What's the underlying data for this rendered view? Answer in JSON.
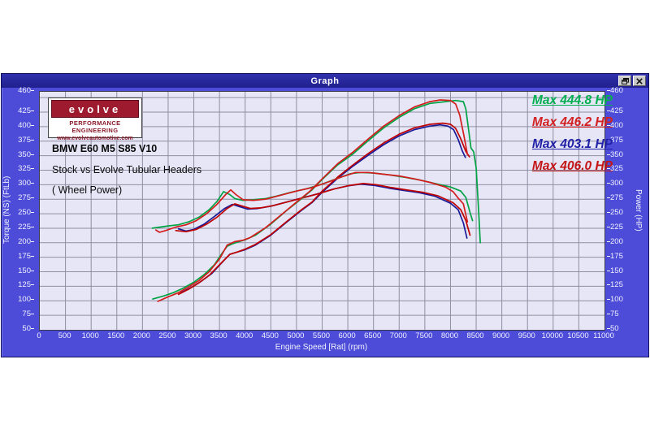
{
  "window": {
    "title": "Graph",
    "buttons": {
      "restore": "restore-window",
      "close": "close-window"
    }
  },
  "logo": {
    "brand": "evolve",
    "line1": "PERFORMANCE ENGINEERING",
    "line2": "www.evolveautomotive.com",
    "band_color": "#9e1a2e",
    "text_color": "#8b1a2b"
  },
  "annotations": {
    "line1": "BMW E60 M5 S85 V10",
    "line2": "Stock vs Evolve Tubular Headers",
    "line3": "( Wheel Power)"
  },
  "legend": [
    {
      "label": "Max 444.8 HP",
      "color": "#00b050"
    },
    {
      "label": "Max 446.2 HP",
      "color": "#d42020"
    },
    {
      "label": "Max 403.1 HP",
      "color": "#2121a8"
    },
    {
      "label": "Max 406.0 HP",
      "color": "#c41414"
    }
  ],
  "chart_data": {
    "type": "line",
    "title": "Graph",
    "xlabel": "Engine Speed [Rat] (rpm)",
    "ylabel_left": "Torque (NS) (FtLb)",
    "ylabel_right": "Power (HP)",
    "xlim": [
      0,
      11000
    ],
    "ylim": [
      50,
      460
    ],
    "grid": true,
    "x_ticks": [
      0,
      500,
      1000,
      1500,
      2000,
      2500,
      3000,
      3500,
      4000,
      4500,
      5000,
      5500,
      6000,
      6500,
      7000,
      7500,
      8000,
      8500,
      9000,
      9500,
      10000,
      10500,
      11000
    ],
    "y_ticks": [
      460,
      425,
      400,
      375,
      350,
      325,
      300,
      275,
      250,
      225,
      200,
      175,
      150,
      125,
      100,
      75,
      50
    ],
    "y_grid_step": 25,
    "plot_bg": "#E6E6F7",
    "grid_color": "#8f8fa2",
    "series": [
      {
        "name": "stock-run1-power",
        "unit": "HP",
        "max": 403.1,
        "color": "#1a1a99",
        "points": [
          [
            2750,
            114
          ],
          [
            2950,
            123
          ],
          [
            3150,
            134
          ],
          [
            3350,
            147
          ],
          [
            3550,
            166
          ],
          [
            3700,
            180
          ],
          [
            3850,
            184
          ],
          [
            4000,
            188
          ],
          [
            4200,
            196
          ],
          [
            4500,
            213
          ],
          [
            4800,
            235
          ],
          [
            5100,
            256
          ],
          [
            5300,
            269
          ],
          [
            5500,
            287
          ],
          [
            5800,
            311
          ],
          [
            6100,
            332
          ],
          [
            6400,
            351
          ],
          [
            6700,
            369
          ],
          [
            7000,
            384
          ],
          [
            7300,
            395
          ],
          [
            7600,
            401
          ],
          [
            7800,
            403
          ],
          [
            7950,
            401
          ],
          [
            8060,
            395
          ],
          [
            8150,
            378
          ],
          [
            8230,
            358
          ],
          [
            8290,
            347
          ]
        ]
      },
      {
        "name": "stock-run2-power",
        "unit": "HP",
        "max": 406.0,
        "color": "#c00000",
        "points": [
          [
            2700,
            111
          ],
          [
            2900,
            120
          ],
          [
            3100,
            131
          ],
          [
            3300,
            144
          ],
          [
            3500,
            162
          ],
          [
            3700,
            180
          ],
          [
            3850,
            184
          ],
          [
            4000,
            189
          ],
          [
            4200,
            197
          ],
          [
            4500,
            214
          ],
          [
            4800,
            236
          ],
          [
            5100,
            257
          ],
          [
            5300,
            270
          ],
          [
            5500,
            289
          ],
          [
            5800,
            313
          ],
          [
            6100,
            334
          ],
          [
            6400,
            354
          ],
          [
            6700,
            372
          ],
          [
            7000,
            387
          ],
          [
            7300,
            398
          ],
          [
            7600,
            404
          ],
          [
            7850,
            406
          ],
          [
            8000,
            404
          ],
          [
            8100,
            397
          ],
          [
            8200,
            379
          ],
          [
            8300,
            357
          ],
          [
            8370,
            348
          ]
        ]
      },
      {
        "name": "stock-run1-torque",
        "unit": "FtLb",
        "color": "#1a1a99",
        "points": [
          [
            2700,
            224
          ],
          [
            2850,
            220
          ],
          [
            3000,
            223
          ],
          [
            3200,
            232
          ],
          [
            3400,
            245
          ],
          [
            3600,
            259
          ],
          [
            3750,
            266
          ],
          [
            3900,
            262
          ],
          [
            4050,
            258
          ],
          [
            4250,
            259
          ],
          [
            4500,
            263
          ],
          [
            4800,
            270
          ],
          [
            5100,
            277
          ],
          [
            5400,
            284
          ],
          [
            5700,
            292
          ],
          [
            6000,
            298
          ],
          [
            6250,
            301
          ],
          [
            6500,
            299
          ],
          [
            6800,
            294
          ],
          [
            7100,
            290
          ],
          [
            7400,
            286
          ],
          [
            7700,
            280
          ],
          [
            8000,
            268
          ],
          [
            8150,
            257
          ],
          [
            8250,
            234
          ],
          [
            8320,
            208
          ]
        ]
      },
      {
        "name": "stock-run2-torque",
        "unit": "FtLb",
        "color": "#c00000",
        "points": [
          [
            2650,
            221
          ],
          [
            2850,
            219
          ],
          [
            3050,
            223
          ],
          [
            3250,
            232
          ],
          [
            3450,
            244
          ],
          [
            3650,
            259
          ],
          [
            3800,
            267
          ],
          [
            3950,
            263
          ],
          [
            4100,
            259
          ],
          [
            4300,
            260
          ],
          [
            4550,
            264
          ],
          [
            4850,
            271
          ],
          [
            5150,
            278
          ],
          [
            5450,
            285
          ],
          [
            5750,
            293
          ],
          [
            6050,
            299
          ],
          [
            6300,
            302
          ],
          [
            6550,
            300
          ],
          [
            6850,
            295
          ],
          [
            7150,
            291
          ],
          [
            7450,
            287
          ],
          [
            7750,
            281
          ],
          [
            8050,
            269
          ],
          [
            8200,
            257
          ],
          [
            8300,
            238
          ],
          [
            8380,
            213
          ]
        ]
      },
      {
        "name": "evolve-run1-power",
        "unit": "HP",
        "max": 444.8,
        "color": "#00a344",
        "points": [
          [
            2200,
            103
          ],
          [
            2400,
            108
          ],
          [
            2600,
            114
          ],
          [
            2800,
            122
          ],
          [
            3000,
            132
          ],
          [
            3200,
            145
          ],
          [
            3400,
            162
          ],
          [
            3550,
            182
          ],
          [
            3650,
            194
          ],
          [
            3750,
            198
          ],
          [
            3850,
            201
          ],
          [
            4000,
            205
          ],
          [
            4200,
            213
          ],
          [
            4500,
            232
          ],
          [
            4800,
            255
          ],
          [
            5100,
            276
          ],
          [
            5300,
            291
          ],
          [
            5500,
            309
          ],
          [
            5800,
            334
          ],
          [
            6100,
            353
          ],
          [
            6400,
            376
          ],
          [
            6700,
            398
          ],
          [
            7000,
            416
          ],
          [
            7300,
            431
          ],
          [
            7600,
            440
          ],
          [
            7900,
            443
          ],
          [
            8100,
            445
          ],
          [
            8250,
            443
          ],
          [
            8300,
            430
          ],
          [
            8350,
            396
          ],
          [
            8400,
            363
          ],
          [
            8450,
            357
          ],
          [
            8500,
            330
          ],
          [
            8550,
            252
          ],
          [
            8580,
            200
          ]
        ]
      },
      {
        "name": "evolve-run1-torque",
        "unit": "FtLb",
        "color": "#00a344",
        "points": [
          [
            2190,
            225
          ],
          [
            2350,
            227
          ],
          [
            2500,
            229
          ],
          [
            2700,
            231
          ],
          [
            2900,
            236
          ],
          [
            3100,
            244
          ],
          [
            3300,
            257
          ],
          [
            3450,
            271
          ],
          [
            3580,
            288
          ],
          [
            3700,
            283
          ],
          [
            3800,
            276
          ],
          [
            3950,
            273
          ],
          [
            4150,
            274
          ],
          [
            4400,
            276
          ],
          [
            4600,
            280
          ],
          [
            4900,
            287
          ],
          [
            5200,
            293
          ],
          [
            5500,
            301
          ],
          [
            5800,
            311
          ],
          [
            6050,
            319
          ],
          [
            6250,
            321
          ],
          [
            6500,
            320
          ],
          [
            6800,
            317
          ],
          [
            7100,
            313
          ],
          [
            7400,
            308
          ],
          [
            7700,
            302
          ],
          [
            8000,
            296
          ],
          [
            8200,
            289
          ],
          [
            8300,
            278
          ],
          [
            8380,
            252
          ],
          [
            8430,
            238
          ]
        ]
      },
      {
        "name": "evolve-run2-power",
        "unit": "HP",
        "max": 446.2,
        "color": "#d41c1c",
        "points": [
          [
            2300,
            99
          ],
          [
            2500,
            107
          ],
          [
            2700,
            114
          ],
          [
            2900,
            124
          ],
          [
            3100,
            135
          ],
          [
            3300,
            150
          ],
          [
            3500,
            172
          ],
          [
            3650,
            196
          ],
          [
            3800,
            202
          ],
          [
            3950,
            204
          ],
          [
            4100,
            209
          ],
          [
            4400,
            226
          ],
          [
            4700,
            248
          ],
          [
            5000,
            270
          ],
          [
            5252,
            288
          ],
          [
            5500,
            310
          ],
          [
            5800,
            336
          ],
          [
            6100,
            356
          ],
          [
            6400,
            379
          ],
          [
            6700,
            401
          ],
          [
            7000,
            419
          ],
          [
            7300,
            434
          ],
          [
            7600,
            443
          ],
          [
            7800,
            446
          ],
          [
            8000,
            445
          ],
          [
            8100,
            439
          ],
          [
            8180,
            420
          ],
          [
            8260,
            385
          ],
          [
            8330,
            352
          ]
        ]
      },
      {
        "name": "evolve-run2-torque",
        "unit": "FtLb",
        "color": "#d41c1c",
        "points": [
          [
            2260,
            222
          ],
          [
            2330,
            218
          ],
          [
            2450,
            221
          ],
          [
            2650,
            227
          ],
          [
            2850,
            231
          ],
          [
            3050,
            238
          ],
          [
            3250,
            250
          ],
          [
            3450,
            266
          ],
          [
            3620,
            283
          ],
          [
            3720,
            291
          ],
          [
            3820,
            283
          ],
          [
            3960,
            274
          ],
          [
            4160,
            273
          ],
          [
            4400,
            275
          ],
          [
            4700,
            282
          ],
          [
            5000,
            289
          ],
          [
            5300,
            295
          ],
          [
            5600,
            304
          ],
          [
            5900,
            314
          ],
          [
            6150,
            321
          ],
          [
            6400,
            321
          ],
          [
            6700,
            318
          ],
          [
            7000,
            315
          ],
          [
            7300,
            310
          ],
          [
            7600,
            304
          ],
          [
            7900,
            296
          ],
          [
            8050,
            288
          ],
          [
            8150,
            277
          ],
          [
            8250,
            267
          ],
          [
            8330,
            236
          ]
        ]
      }
    ]
  }
}
